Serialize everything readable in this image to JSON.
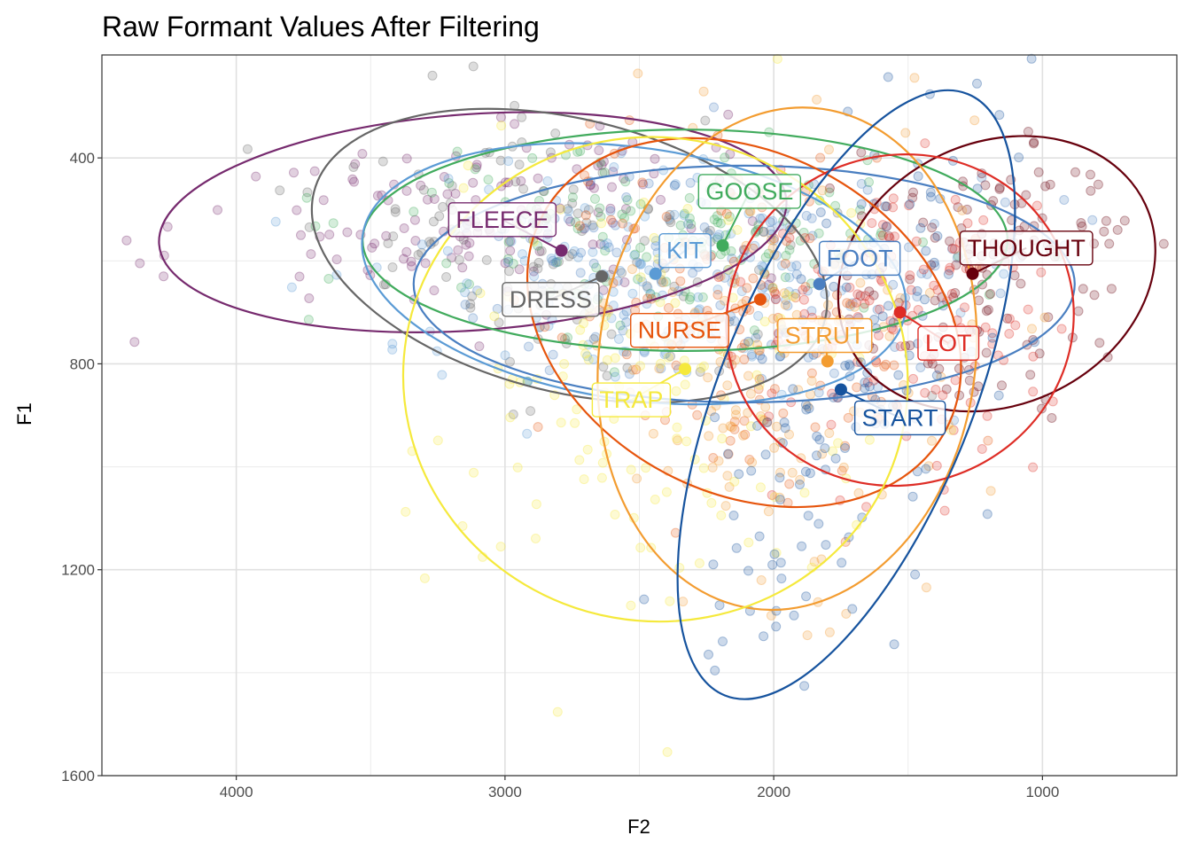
{
  "chart_data": {
    "type": "scatter",
    "title": "Raw Formant Values After Filtering",
    "xlabel": "F2",
    "ylabel": "F1",
    "x_axis_reversed": true,
    "y_axis_reversed": true,
    "xlim": [
      4500,
      500
    ],
    "ylim": [
      1600,
      200
    ],
    "x_ticks": [
      4000,
      3000,
      2000,
      1000
    ],
    "y_ticks": [
      400,
      800,
      1200,
      1600
    ],
    "grid": true,
    "legend": "none",
    "series": [
      {
        "name": "FLEECE",
        "color": "#762a6e",
        "mean_f2": 2790,
        "mean_f1": 580,
        "label_f2": 3010,
        "label_f1": 520,
        "ellipse": {
          "cx_f2": 3120,
          "cy_f1": 525,
          "rx_f2": 1170,
          "ry_f1": 210,
          "angle": -4
        }
      },
      {
        "name": "DRESS",
        "color": "#666666",
        "mean_f2": 2640,
        "mean_f1": 630,
        "label_f2": 2830,
        "label_f1": 675,
        "ellipse": {
          "cx_f2": 2760,
          "cy_f1": 590,
          "rx_f2": 980,
          "ry_f1": 265,
          "angle": 14
        }
      },
      {
        "name": "GOOSE",
        "color": "#41ab5d",
        "mean_f2": 2190,
        "mean_f1": 570,
        "label_f2": 2090,
        "label_f1": 465,
        "ellipse": {
          "cx_f2": 2330,
          "cy_f1": 560,
          "rx_f2": 1200,
          "ry_f1": 215,
          "angle": 0
        }
      },
      {
        "name": "KIT",
        "color": "#5b9bd5",
        "mean_f2": 2440,
        "mean_f1": 625,
        "label_f2": 2330,
        "label_f1": 580,
        "ellipse": {
          "cx_f2": 2520,
          "cy_f1": 625,
          "rx_f2": 1020,
          "ry_f1": 245,
          "angle": 8
        }
      },
      {
        "name": "FOOT",
        "color": "#4a7fc1",
        "mean_f2": 1830,
        "mean_f1": 645,
        "label_f2": 1680,
        "label_f1": 595,
        "ellipse": {
          "cx_f2": 2110,
          "cy_f1": 645,
          "rx_f2": 1230,
          "ry_f1": 230,
          "angle": 0
        }
      },
      {
        "name": "THOUGHT",
        "color": "#67000d",
        "mean_f2": 1260,
        "mean_f1": 625,
        "label_f2": 1060,
        "label_f1": 575,
        "ellipse": {
          "cx_f2": 1170,
          "cy_f1": 625,
          "rx_f2": 610,
          "ry_f1": 255,
          "angle": -25
        }
      },
      {
        "name": "NURSE",
        "color": "#e6550d",
        "mean_f2": 2050,
        "mean_f1": 675,
        "label_f2": 2350,
        "label_f1": 735,
        "ellipse": {
          "cx_f2": 2110,
          "cy_f1": 720,
          "rx_f2": 850,
          "ry_f1": 330,
          "angle": 28
        }
      },
      {
        "name": "STRUT",
        "color": "#f39c30",
        "mean_f2": 1800,
        "mean_f1": 795,
        "label_f2": 1810,
        "label_f1": 745,
        "ellipse": {
          "cx_f2": 1950,
          "cy_f1": 790,
          "rx_f2": 700,
          "ry_f1": 490,
          "angle": 8
        }
      },
      {
        "name": "LOT",
        "color": "#de2d26",
        "mean_f2": 1530,
        "mean_f1": 700,
        "label_f2": 1350,
        "label_f1": 760,
        "ellipse": {
          "cx_f2": 1530,
          "cy_f1": 715,
          "rx_f2": 650,
          "ry_f1": 320,
          "angle": -18
        }
      },
      {
        "name": "TRAP",
        "color": "#f5e93c",
        "mean_f2": 2330,
        "mean_f1": 810,
        "label_f2": 2530,
        "label_f1": 870,
        "ellipse": {
          "cx_f2": 2440,
          "cy_f1": 830,
          "rx_f2": 940,
          "ry_f1": 470,
          "angle": 10
        }
      },
      {
        "name": "START",
        "color": "#16539e",
        "mean_f2": 1750,
        "mean_f1": 850,
        "label_f2": 1530,
        "label_f1": 905,
        "ellipse": {
          "cx_f2": 1730,
          "cy_f1": 860,
          "rx_f2": 470,
          "ry_f1": 630,
          "angle": 22
        }
      }
    ]
  }
}
